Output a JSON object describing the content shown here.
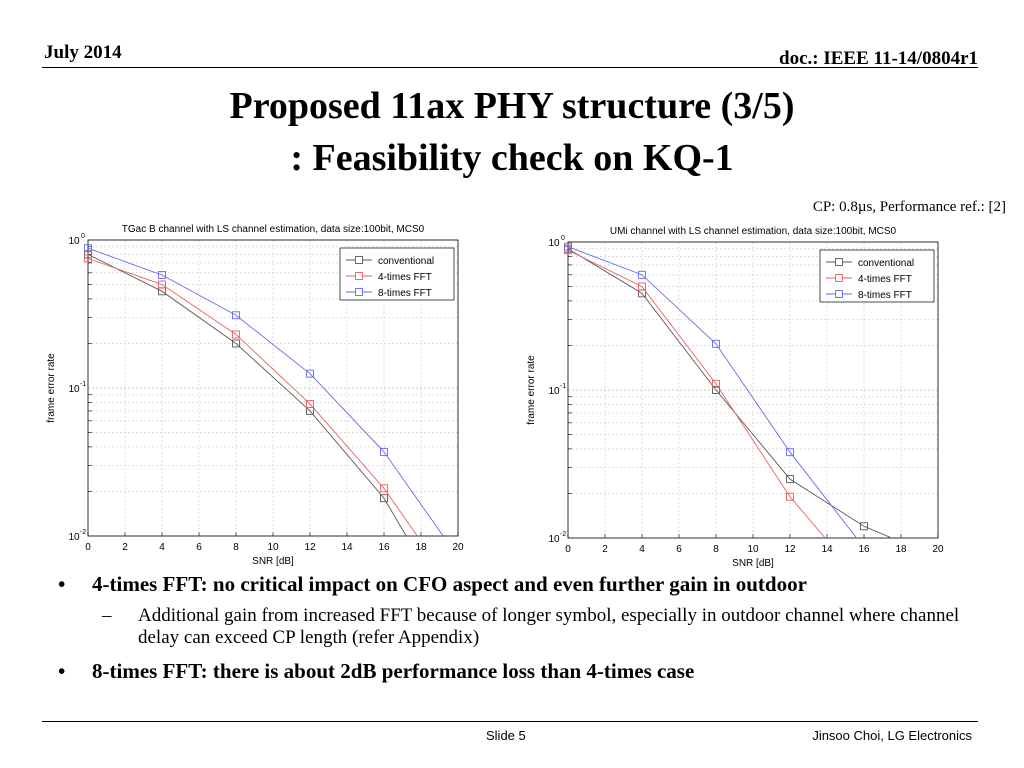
{
  "header": {
    "date": "July 2014",
    "doc": "doc.: IEEE 11-14/0804r1"
  },
  "title": {
    "line1": "Proposed 11ax PHY structure (3/5)",
    "line2": ": Feasibility check on KQ-1"
  },
  "note": "CP: 0.8µs, Performance ref.: [2]",
  "colors": {
    "conventional": "#5a5a5a",
    "fft4": "#e86060",
    "fft8": "#6a6ae8"
  },
  "chart_data": [
    {
      "type": "line",
      "title": "TGac B channel with LS channel estimation, data size:100bit, MCS0",
      "xlabel": "SNR [dB]",
      "ylabel": "frame error rate",
      "xlim": [
        0,
        20
      ],
      "ylim": [
        0.01,
        1
      ],
      "yscale": "log",
      "xticks": [
        0,
        2,
        4,
        6,
        8,
        10,
        12,
        14,
        16,
        18,
        20
      ],
      "grid": true,
      "legend": "top-right",
      "series": [
        {
          "name": "conventional",
          "marker": "square",
          "points": [
            [
              0,
              0.8
            ],
            [
              4,
              0.45
            ],
            [
              8,
              0.2
            ],
            [
              12,
              0.07
            ],
            [
              16,
              0.018
            ],
            [
              17.2,
              0.01
            ]
          ]
        },
        {
          "name": "4-times FFT",
          "marker": "square",
          "points": [
            [
              0,
              0.75
            ],
            [
              4,
              0.5
            ],
            [
              8,
              0.23
            ],
            [
              12,
              0.078
            ],
            [
              16,
              0.021
            ],
            [
              17.8,
              0.01
            ]
          ]
        },
        {
          "name": "8-times FFT",
          "marker": "square",
          "points": [
            [
              0,
              0.88
            ],
            [
              4,
              0.58
            ],
            [
              8,
              0.31
            ],
            [
              12,
              0.125
            ],
            [
              16,
              0.037
            ],
            [
              19.2,
              0.01
            ]
          ]
        }
      ]
    },
    {
      "type": "line",
      "title": "UMi channel with LS channel estimation, data size:100bit, MCS0",
      "xlabel": "SNR [dB]",
      "ylabel": "frame error rate",
      "xlim": [
        0,
        20
      ],
      "ylim": [
        0.01,
        1
      ],
      "yscale": "log",
      "xticks": [
        0,
        2,
        4,
        6,
        8,
        10,
        12,
        14,
        16,
        18,
        20
      ],
      "grid": true,
      "legend": "top-right",
      "series": [
        {
          "name": "conventional",
          "marker": "square",
          "points": [
            [
              0,
              0.9
            ],
            [
              4,
              0.45
            ],
            [
              8,
              0.1
            ],
            [
              12,
              0.025
            ],
            [
              16,
              0.012
            ],
            [
              17.5,
              0.01
            ]
          ]
        },
        {
          "name": "4-times FFT",
          "marker": "square",
          "points": [
            [
              0,
              0.88
            ],
            [
              4,
              0.5
            ],
            [
              8,
              0.11
            ],
            [
              12,
              0.019
            ],
            [
              13.9,
              0.01
            ]
          ]
        },
        {
          "name": "8-times FFT",
          "marker": "square",
          "points": [
            [
              0,
              0.93
            ],
            [
              4,
              0.6
            ],
            [
              8,
              0.205
            ],
            [
              12,
              0.038
            ],
            [
              15.6,
              0.01
            ]
          ]
        }
      ]
    }
  ],
  "bullets": {
    "item1": "4-times FFT: no critical impact on CFO aspect and even further gain in outdoor",
    "item1_sub": "Additional gain from increased FFT because of longer symbol, especially in outdoor channel where channel delay can exceed CP length (refer Appendix)",
    "item2": "8-times FFT: there is about 2dB performance loss than 4-times case",
    "bullet_glyph": "•",
    "dash_glyph": "–"
  },
  "footer": {
    "slide": "Slide 5",
    "author": "Jinsoo Choi, LG Electronics"
  }
}
